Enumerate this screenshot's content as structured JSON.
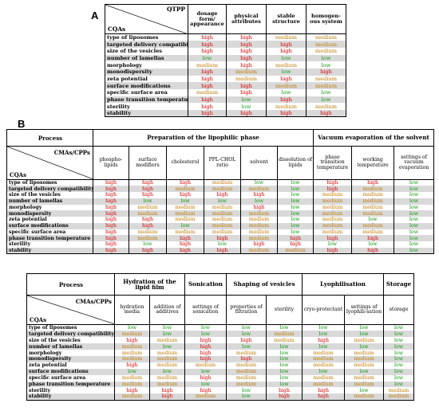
{
  "panel_a_label": "A",
  "panel_b_label": "B",
  "colors": {
    "high": "#d40000",
    "medium": "#c07a00",
    "low": "#119a11",
    "shade": "#d9d9d9"
  },
  "cqas": [
    "type of liposomes",
    "targeted delivery compatibility",
    "size of the vesicles",
    "number of lamellas",
    "morphology",
    "monodispersity",
    "zeta potential",
    "surface modifications",
    "specific surface area",
    "phase transition temperature",
    "sterility",
    "stability"
  ],
  "table_a": {
    "corner_top": "QTPP",
    "corner_bottom": "CQAs",
    "columns": [
      "dosage form/ appearance",
      "physical attributes",
      "stable structure",
      "homogen-ous system"
    ],
    "rows": [
      [
        "high",
        "high",
        "medium",
        "medium"
      ],
      [
        "high",
        "high",
        "high",
        "medium"
      ],
      [
        "high",
        "high",
        "high",
        "medium"
      ],
      [
        "low",
        "high",
        "low",
        "low"
      ],
      [
        "medium",
        "high",
        "medium",
        "low"
      ],
      [
        "high",
        "medium",
        "low",
        "high"
      ],
      [
        "high",
        "medium",
        "high",
        "medium"
      ],
      [
        "high",
        "high",
        "medium",
        "medium"
      ],
      [
        "medium",
        "high",
        "low",
        "low"
      ],
      [
        "high",
        "low",
        "high",
        "low"
      ],
      [
        "high",
        "low",
        "medium",
        "medium"
      ],
      [
        "high",
        "high",
        "high",
        "high"
      ]
    ]
  },
  "table_b1": {
    "corner_title": "Process",
    "corner_top": "CMAs/CPPs",
    "corner_bottom": "CQAs",
    "groups": [
      {
        "label": "Preparation of the lipophilic phase",
        "span": 6
      },
      {
        "label": "Vacuum evaporation of the solvent",
        "span": 3
      }
    ],
    "columns": [
      "phospho-lipids",
      "surface modifiers",
      "cholesterol",
      "PPL-CHOL ratio",
      "solvent",
      "dissolution of lipids",
      "phase transition temperature",
      "working temperature",
      "settings of vacuum evaporation"
    ],
    "rows": [
      [
        "high",
        "high",
        "high",
        "medium",
        "low",
        "low",
        "high",
        "high",
        "low"
      ],
      [
        "high",
        "high",
        "medium",
        "medium",
        "medium",
        "low",
        "high",
        "medium",
        "low"
      ],
      [
        "high",
        "high",
        "high",
        "high",
        "high",
        "low",
        "medium",
        "medium",
        "low"
      ],
      [
        "high",
        "low",
        "low",
        "low",
        "low",
        "low",
        "medium",
        "medium",
        "low"
      ],
      [
        "high",
        "medium",
        "medium",
        "medium",
        "high",
        "low",
        "medium",
        "medium",
        "low"
      ],
      [
        "high",
        "medium",
        "medium",
        "medium",
        "medium",
        "low",
        "medium",
        "medium",
        "low"
      ],
      [
        "high",
        "high",
        "medium",
        "medium",
        "medium",
        "low",
        "medium",
        "low",
        "low"
      ],
      [
        "high",
        "high",
        "low",
        "medium",
        "medium",
        "low",
        "medium",
        "medium",
        "low"
      ],
      [
        "high",
        "medium",
        "medium",
        "medium",
        "medium",
        "low",
        "medium",
        "medium",
        "low"
      ],
      [
        "high",
        "medium",
        "high",
        "high",
        "medium",
        "high",
        "high",
        "high",
        "low"
      ],
      [
        "high",
        "low",
        "high",
        "low",
        "high",
        "high",
        "low",
        "low",
        "low"
      ],
      [
        "high",
        "high",
        "high",
        "high",
        "medium",
        "medium",
        "high",
        "high",
        "low"
      ]
    ]
  },
  "table_b2": {
    "corner_title": "Process",
    "corner_top": "CMAs/CPPs",
    "corner_bottom": "CQAs",
    "groups": [
      {
        "label": "Hydration of the lipid film",
        "span": 2
      },
      {
        "label": "Sonication",
        "span": 1
      },
      {
        "label": "Shaping of vesicles",
        "span": 2
      },
      {
        "label": "Lyophilisation",
        "span": 2
      },
      {
        "label": "Storage",
        "span": 1
      }
    ],
    "columns": [
      "hydration media",
      "addition of additives",
      "settings of sonication",
      "properties of filtration",
      "sterility",
      "cryo-protectant",
      "settings of lyophili-sation",
      "storage"
    ],
    "rows": [
      [
        "low",
        "low",
        "low",
        "low",
        "low",
        "low",
        "low",
        "low"
      ],
      [
        "medium",
        "low",
        "low",
        "low",
        "medium",
        "low",
        "low",
        "low"
      ],
      [
        "high",
        "medium",
        "high",
        "high",
        "medium",
        "high",
        "medium",
        "low"
      ],
      [
        "medium",
        "low",
        "high",
        "low",
        "low",
        "low",
        "low",
        "low"
      ],
      [
        "medium",
        "medium",
        "high",
        "medium",
        "low",
        "medium",
        "medium",
        "low"
      ],
      [
        "medium",
        "medium",
        "high",
        "high",
        "low",
        "medium",
        "medium",
        "low"
      ],
      [
        "high",
        "medium",
        "medium",
        "medium",
        "low",
        "medium",
        "medium",
        "low"
      ],
      [
        "low",
        "low",
        "low",
        "medium",
        "low",
        "low",
        "low",
        "low"
      ],
      [
        "medium",
        "medium",
        "high",
        "medium",
        "low",
        "medium",
        "medium",
        "low"
      ],
      [
        "medium",
        "medium",
        "low",
        "medium",
        "low",
        "medium",
        "medium",
        "low"
      ],
      [
        "high",
        "high",
        "high",
        "low",
        "high",
        "high",
        "low",
        "medium"
      ],
      [
        "medium",
        "high",
        "medium",
        "low",
        "high",
        "high",
        "medium",
        "medium"
      ]
    ]
  }
}
